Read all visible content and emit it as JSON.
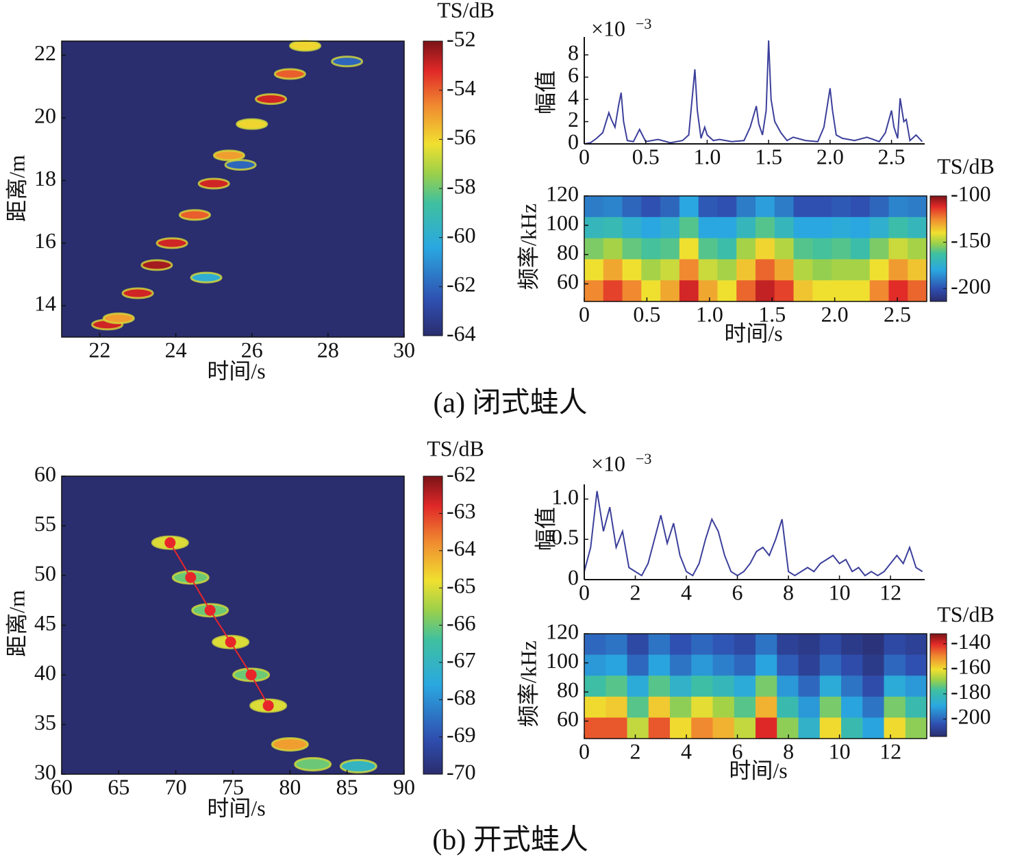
{
  "chart_data": [
    {
      "type": "heatmap",
      "xlabel": "时间/s",
      "ylabel": "距离/m",
      "clabel": "TS/dB",
      "xlim": [
        21,
        30
      ],
      "xticks": [
        22,
        24,
        26,
        28,
        30
      ],
      "ylim": [
        13,
        22.45
      ],
      "yticks": [
        14,
        16,
        18,
        20,
        22
      ],
      "clim": [
        -64,
        -52
      ],
      "cticks": [
        -52,
        -54,
        -56,
        -58,
        -60,
        -62,
        -64
      ],
      "x": [
        22.2,
        22.5,
        23,
        23.5,
        23.9,
        24.5,
        25,
        25.4,
        26,
        26.5,
        27,
        27.4,
        28.5,
        24.8,
        25.7
      ],
      "y": [
        13.4,
        13.6,
        14.4,
        15.3,
        16,
        16.9,
        17.9,
        18.8,
        19.8,
        20.6,
        21.4,
        22.3,
        21.8,
        14.9,
        18.5
      ],
      "values": [
        -53,
        -55,
        -53,
        -52.5,
        -53,
        -54,
        -53,
        -55,
        -56,
        -53,
        -54,
        -56,
        -62,
        -60,
        -62
      ]
    },
    {
      "type": "line",
      "ylabel": "幅值",
      "scale_label": "×10",
      "scale_exponent": "−3",
      "color": "#3b3f9a",
      "xlim": [
        0,
        2.77
      ],
      "xticks": [
        0,
        0.5,
        {
          "value": 1,
          "label": "1.0"
        },
        1.5,
        {
          "value": 2,
          "label": "2.0"
        },
        2.5
      ],
      "ylim": [
        0,
        9.3
      ],
      "yticks": [
        0,
        2,
        4,
        6,
        8
      ],
      "x": [
        0,
        0.05,
        0.1,
        0.15,
        0.2,
        0.22,
        0.25,
        0.28,
        0.3,
        0.32,
        0.35,
        0.4,
        0.45,
        0.5,
        0.6,
        0.7,
        0.8,
        0.85,
        0.9,
        0.92,
        0.95,
        0.98,
        1.0,
        1.05,
        1.1,
        1.2,
        1.3,
        1.35,
        1.4,
        1.42,
        1.45,
        1.48,
        1.5,
        1.52,
        1.55,
        1.6,
        1.65,
        1.7,
        1.8,
        1.9,
        1.95,
        2.0,
        2.02,
        2.05,
        2.1,
        2.2,
        2.3,
        2.4,
        2.45,
        2.5,
        2.52,
        2.55,
        2.57,
        2.6,
        2.62,
        2.65,
        2.7,
        2.75
      ],
      "values": [
        0,
        0.1,
        0.5,
        1,
        2.8,
        2.2,
        1.5,
        3.5,
        4.6,
        2,
        0.3,
        0.2,
        1.3,
        0.2,
        0.4,
        0.1,
        0.3,
        0.8,
        6.7,
        3,
        0.5,
        1.5,
        0.8,
        0.3,
        0.4,
        0.2,
        0.3,
        1.5,
        3.4,
        1.8,
        0.8,
        3,
        9.3,
        4,
        2,
        1,
        0.3,
        0.6,
        0.3,
        0.2,
        1.5,
        5,
        3,
        0.8,
        0.5,
        0.3,
        0.6,
        0.2,
        1,
        3,
        1.5,
        0.5,
        4.1,
        2,
        2.2,
        0.3,
        0.8,
        0.2
      ]
    },
    {
      "type": "spectrogram",
      "xlabel": "时间/s",
      "ylabel": "频率/kHz",
      "clabel": "TS/dB",
      "xlim": [
        0,
        2.735
      ],
      "xticks": [
        0,
        0.5,
        {
          "value": 1,
          "label": "1.0"
        },
        1.5,
        {
          "value": 2,
          "label": "2.0"
        },
        2.5
      ],
      "ylim": [
        48,
        120
      ],
      "yticks": [
        60,
        80,
        100,
        120
      ],
      "clim": [
        -214,
        -100
      ],
      "cticks": [
        -100,
        -150,
        -200
      ],
      "z": [
        [
          -190,
          -188,
          -195,
          -200,
          -195,
          -180,
          -198,
          -200,
          -190,
          -182,
          -190,
          -200,
          -200,
          -198,
          -200,
          -195,
          -188,
          -190
        ],
        [
          -170,
          -168,
          -175,
          -180,
          -175,
          -160,
          -180,
          -180,
          -170,
          -160,
          -170,
          -180,
          -180,
          -178,
          -180,
          -175,
          -165,
          -170
        ],
        [
          -155,
          -150,
          -158,
          -162,
          -160,
          -140,
          -160,
          -165,
          -150,
          -138,
          -148,
          -160,
          -162,
          -160,
          -165,
          -155,
          -145,
          -150
        ],
        [
          -140,
          -130,
          -140,
          -150,
          -145,
          -125,
          -145,
          -150,
          -135,
          -120,
          -130,
          -148,
          -152,
          -150,
          -150,
          -140,
          -128,
          -135
        ],
        [
          -125,
          -115,
          -125,
          -140,
          -130,
          -110,
          -130,
          -140,
          -120,
          -108,
          -115,
          -135,
          -140,
          -140,
          -140,
          -125,
          -112,
          -120
        ]
      ]
    },
    {
      "type": "heatmap",
      "xlabel": "时间/s",
      "ylabel": "距离/m",
      "clabel": "TS/dB",
      "xlim": [
        60,
        90
      ],
      "xticks": [
        60,
        65,
        70,
        75,
        80,
        85,
        90
      ],
      "ylim": [
        30,
        60
      ],
      "yticks": [
        30,
        35,
        40,
        45,
        50,
        55,
        60
      ],
      "clim": [
        -70,
        -62
      ],
      "cticks": [
        -62,
        -63,
        -64,
        -65,
        -66,
        -67,
        -68,
        -69,
        -70
      ],
      "x": [
        69.5,
        71.3,
        73,
        74.8,
        76.6,
        78.1,
        80,
        82,
        86
      ],
      "y": [
        53.3,
        49.8,
        46.5,
        43.3,
        40,
        36.9,
        33,
        31,
        30.8
      ],
      "values": [
        -65,
        -66,
        -66,
        -65,
        -66,
        -65,
        -64,
        -66,
        -67
      ],
      "track": {
        "color": "#e8262a",
        "x": [
          69.5,
          71.3,
          73,
          74.8,
          76.6,
          78.1
        ],
        "y": [
          53.3,
          49.8,
          46.5,
          43.3,
          40,
          36.9
        ]
      }
    },
    {
      "type": "line",
      "ylabel": "幅值",
      "scale_label": "×10",
      "scale_exponent": "−3",
      "color": "#3b3f9a",
      "xlim": [
        0,
        13.34
      ],
      "xticks": [
        0,
        2,
        4,
        6,
        8,
        10,
        12
      ],
      "ylim": [
        0,
        1.14
      ],
      "yticks": [
        0,
        0.5,
        {
          "value": 1,
          "label": "1.0"
        }
      ],
      "x": [
        0,
        0.25,
        0.5,
        0.75,
        1,
        1.25,
        1.5,
        1.75,
        2,
        2.25,
        2.5,
        2.75,
        3,
        3.25,
        3.5,
        3.75,
        4,
        4.25,
        4.5,
        4.75,
        5,
        5.25,
        5.5,
        5.75,
        6,
        6.25,
        6.5,
        6.75,
        7,
        7.25,
        7.5,
        7.75,
        8,
        8.25,
        8.5,
        8.75,
        9,
        9.25,
        9.5,
        9.75,
        10,
        10.25,
        10.5,
        10.75,
        11,
        11.25,
        11.5,
        11.75,
        12,
        12.25,
        12.5,
        12.75,
        13,
        13.25
      ],
      "values": [
        0.1,
        0.4,
        1.1,
        0.6,
        0.9,
        0.4,
        0.6,
        0.15,
        0.1,
        0.05,
        0.2,
        0.5,
        0.8,
        0.45,
        0.7,
        0.3,
        0.1,
        0.05,
        0.2,
        0.5,
        0.75,
        0.6,
        0.3,
        0.1,
        0.05,
        0.1,
        0.2,
        0.35,
        0.4,
        0.3,
        0.5,
        0.75,
        0.1,
        0.05,
        0.1,
        0.15,
        0.1,
        0.2,
        0.25,
        0.3,
        0.2,
        0.25,
        0.1,
        0.15,
        0.05,
        0.1,
        0.05,
        0.1,
        0.2,
        0.3,
        0.2,
        0.4,
        0.15,
        0.1
      ]
    },
    {
      "type": "spectrogram",
      "xlabel": "时间/s",
      "ylabel": "频率/kHz",
      "clabel": "TS/dB",
      "xlim": [
        0,
        13.42
      ],
      "xticks": [
        0,
        2,
        4,
        6,
        8,
        10,
        12
      ],
      "ylim": [
        48,
        120
      ],
      "yticks": [
        60,
        80,
        100,
        120
      ],
      "clim": [
        -214,
        -132
      ],
      "cticks": [
        -140,
        -160,
        -180,
        -200
      ],
      "z": [
        [
          -200,
          -198,
          -206,
          -198,
          -204,
          -200,
          -203,
          -206,
          -198,
          -208,
          -210,
          -206,
          -210,
          -212,
          -206,
          -208
        ],
        [
          -192,
          -190,
          -200,
          -190,
          -198,
          -192,
          -196,
          -200,
          -190,
          -202,
          -208,
          -200,
          -205,
          -210,
          -200,
          -204
        ],
        [
          -178,
          -175,
          -188,
          -175,
          -185,
          -178,
          -182,
          -188,
          -172,
          -192,
          -200,
          -188,
          -198,
          -205,
          -188,
          -192
        ],
        [
          -160,
          -158,
          -175,
          -158,
          -170,
          -162,
          -168,
          -175,
          -155,
          -180,
          -192,
          -172,
          -190,
          -198,
          -172,
          -180
        ],
        [
          -145,
          -145,
          -165,
          -145,
          -160,
          -150,
          -155,
          -165,
          -140,
          -170,
          -185,
          -160,
          -180,
          -190,
          -160,
          -170
        ]
      ]
    }
  ],
  "captions": [
    "(a) 闭式蛙人",
    "(b) 开式蛙人"
  ]
}
